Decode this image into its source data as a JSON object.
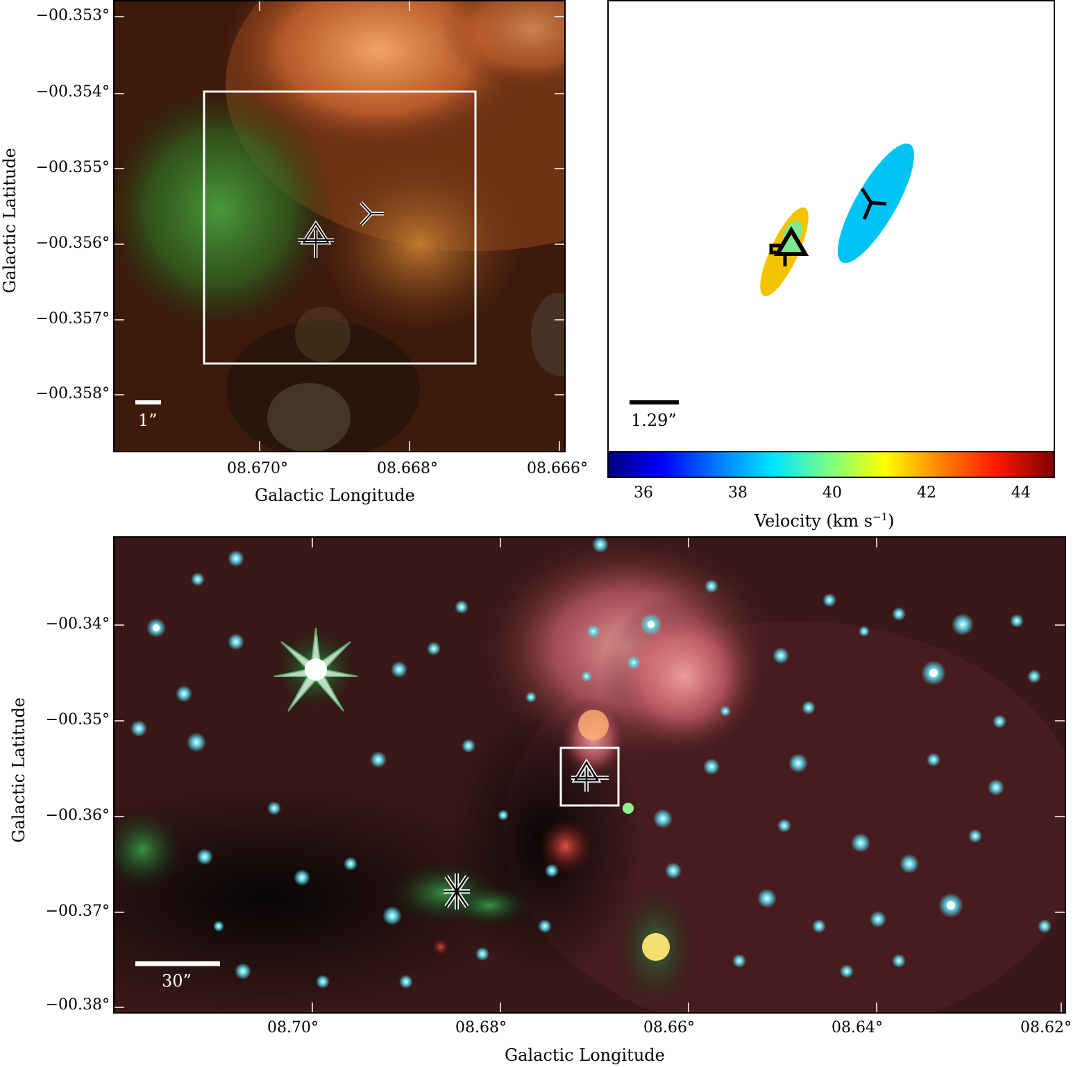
{
  "top_left": {
    "ylabel": "Galactic Latitude",
    "xlabel": "Galactic Longitude",
    "yticks": [
      "−00.353°",
      "−00.354°",
      "−00.355°",
      "−00.356°",
      "−00.357°",
      "−00.358°"
    ],
    "xticks": [
      "08.670°",
      "08.668°",
      "08.666°"
    ],
    "scalebar": "1”"
  },
  "top_right": {
    "scalebar": "1.29”",
    "colorbar_label_main": "Velocity (km s",
    "colorbar_label_sup": "−1",
    "colorbar_label_close": ")",
    "colorbar_ticks": [
      "36",
      "38",
      "40",
      "42",
      "44"
    ],
    "colorbar_range": [
      35.3,
      44.7
    ],
    "sources": [
      {
        "symbol": "triangle",
        "velocity": 39.5,
        "color": "#7ee890"
      },
      {
        "symbol": "square",
        "velocity": 41.6,
        "color": "#f5c400"
      },
      {
        "symbol": "tri-down",
        "velocity": 38.0,
        "color": "#00c4f5"
      }
    ]
  },
  "bottom": {
    "ylabel": "Galactic Latitude",
    "xlabel": "Galactic Longitude",
    "yticks": [
      "−00.34°",
      "−00.35°",
      "−00.36°",
      "−00.37°",
      "−00.38°"
    ],
    "xticks": [
      "08.70°",
      "08.68°",
      "08.66°",
      "08.64°",
      "08.62°"
    ],
    "scalebar": "30”"
  }
}
